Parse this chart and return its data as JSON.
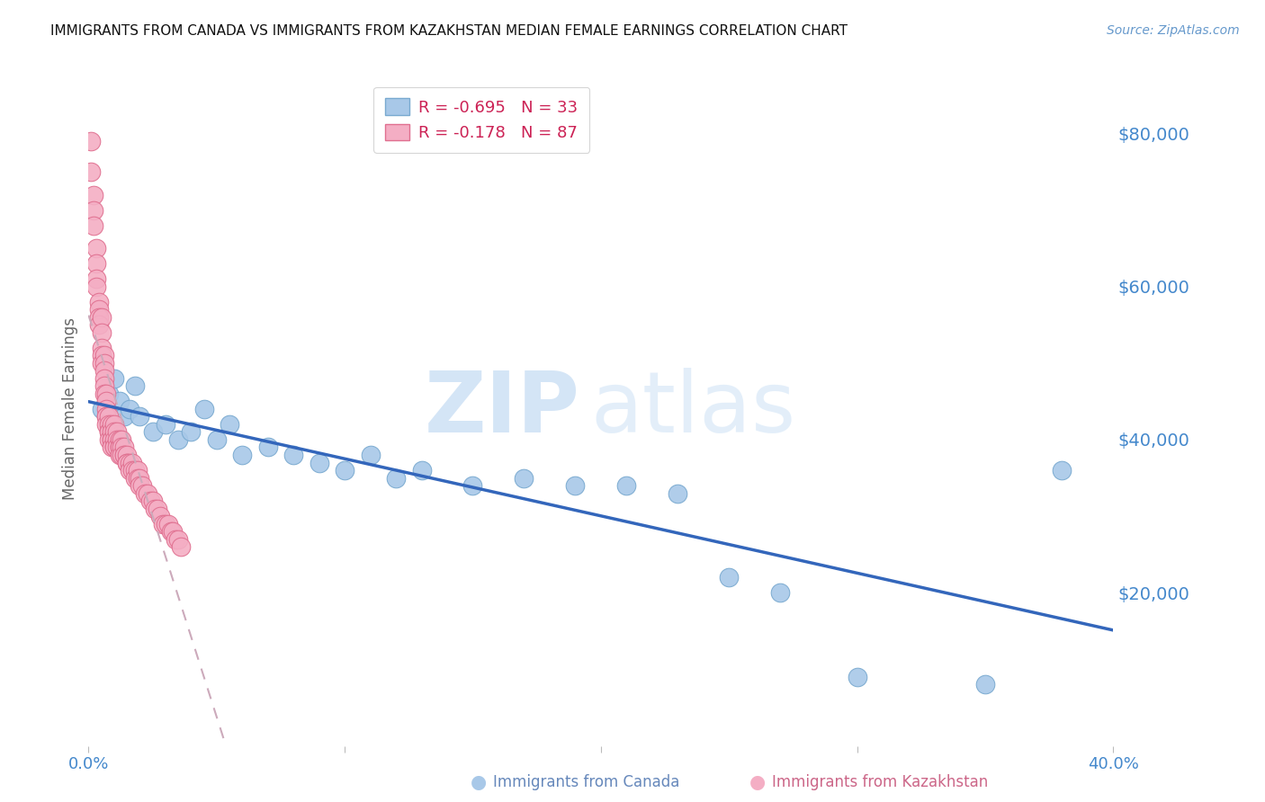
{
  "title": "IMMIGRANTS FROM CANADA VS IMMIGRANTS FROM KAZAKHSTAN MEDIAN FEMALE EARNINGS CORRELATION CHART",
  "source": "Source: ZipAtlas.com",
  "ylabel": "Median Female Earnings",
  "ytick_values": [
    20000,
    40000,
    60000,
    80000
  ],
  "ymin": 0,
  "ymax": 88000,
  "xmin": 0.0,
  "xmax": 0.4,
  "canada_color": "#a8c8e8",
  "canada_edge_color": "#7aaad0",
  "kazakhstan_color": "#f4aec4",
  "kazakhstan_edge_color": "#e07090",
  "canada_R": -0.695,
  "canada_N": 33,
  "kazakhstan_R": -0.178,
  "kazakhstan_N": 87,
  "legend_label_canada": "Immigrants from Canada",
  "legend_label_kazakhstan": "Immigrants from Kazakhstan",
  "watermark_zip": "ZIP",
  "watermark_atlas": "atlas",
  "canada_scatter_x": [
    0.005,
    0.008,
    0.01,
    0.012,
    0.014,
    0.016,
    0.018,
    0.02,
    0.025,
    0.03,
    0.035,
    0.04,
    0.045,
    0.05,
    0.055,
    0.06,
    0.07,
    0.08,
    0.09,
    0.1,
    0.11,
    0.12,
    0.13,
    0.15,
    0.17,
    0.19,
    0.21,
    0.23,
    0.25,
    0.27,
    0.3,
    0.35,
    0.38
  ],
  "canada_scatter_y": [
    44000,
    46000,
    48000,
    45000,
    43000,
    44000,
    47000,
    43000,
    41000,
    42000,
    40000,
    41000,
    44000,
    40000,
    42000,
    38000,
    39000,
    38000,
    37000,
    36000,
    38000,
    35000,
    36000,
    34000,
    35000,
    34000,
    34000,
    33000,
    22000,
    20000,
    9000,
    8000,
    36000
  ],
  "kazakhstan_scatter_x": [
    0.001,
    0.001,
    0.002,
    0.002,
    0.002,
    0.003,
    0.003,
    0.003,
    0.003,
    0.004,
    0.004,
    0.004,
    0.004,
    0.005,
    0.005,
    0.005,
    0.005,
    0.005,
    0.006,
    0.006,
    0.006,
    0.006,
    0.006,
    0.006,
    0.007,
    0.007,
    0.007,
    0.007,
    0.007,
    0.007,
    0.008,
    0.008,
    0.008,
    0.008,
    0.008,
    0.009,
    0.009,
    0.009,
    0.009,
    0.009,
    0.01,
    0.01,
    0.01,
    0.01,
    0.01,
    0.011,
    0.011,
    0.011,
    0.012,
    0.012,
    0.012,
    0.012,
    0.013,
    0.013,
    0.013,
    0.014,
    0.014,
    0.014,
    0.015,
    0.015,
    0.015,
    0.016,
    0.016,
    0.017,
    0.017,
    0.018,
    0.018,
    0.019,
    0.019,
    0.02,
    0.02,
    0.021,
    0.022,
    0.023,
    0.024,
    0.025,
    0.026,
    0.027,
    0.028,
    0.029,
    0.03,
    0.031,
    0.032,
    0.033,
    0.034,
    0.035,
    0.036
  ],
  "kazakhstan_scatter_y": [
    79000,
    75000,
    72000,
    70000,
    68000,
    65000,
    63000,
    61000,
    60000,
    58000,
    57000,
    56000,
    55000,
    56000,
    54000,
    52000,
    51000,
    50000,
    51000,
    50000,
    49000,
    48000,
    47000,
    46000,
    46000,
    45000,
    44000,
    43000,
    43000,
    42000,
    43000,
    42000,
    41000,
    41000,
    40000,
    42000,
    41000,
    40000,
    40000,
    39000,
    42000,
    41000,
    40000,
    39000,
    39000,
    41000,
    40000,
    39000,
    40000,
    39000,
    39000,
    38000,
    40000,
    39000,
    38000,
    39000,
    38000,
    38000,
    38000,
    37000,
    37000,
    37000,
    36000,
    37000,
    36000,
    36000,
    35000,
    36000,
    35000,
    35000,
    34000,
    34000,
    33000,
    33000,
    32000,
    32000,
    31000,
    31000,
    30000,
    29000,
    29000,
    29000,
    28000,
    28000,
    27000,
    27000,
    26000
  ],
  "grid_color": "#cccccc",
  "background_color": "#ffffff",
  "title_fontsize": 11,
  "tick_label_color": "#4488cc",
  "source_color": "#6699cc",
  "ylabel_color": "#666666",
  "watermark_color": "#d0e4f8",
  "reg_canada_color": "#3366bb",
  "reg_kaz_color": "#ccaabb",
  "bottom_legend_canada_color": "#6688bb",
  "bottom_legend_kaz_color": "#cc6688"
}
